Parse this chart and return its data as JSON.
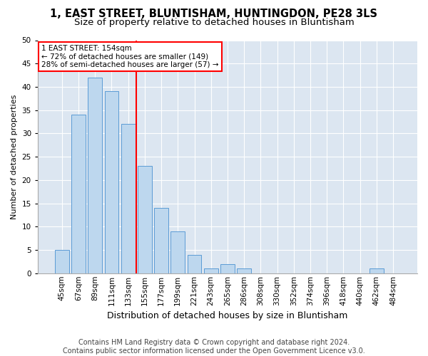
{
  "title": "1, EAST STREET, BLUNTISHAM, HUNTINGDON, PE28 3LS",
  "subtitle": "Size of property relative to detached houses in Bluntisham",
  "xlabel": "Distribution of detached houses by size in Bluntisham",
  "ylabel": "Number of detached properties",
  "categories": [
    "45sqm",
    "67sqm",
    "89sqm",
    "111sqm",
    "133sqm",
    "155sqm",
    "177sqm",
    "199sqm",
    "221sqm",
    "243sqm",
    "265sqm",
    "286sqm",
    "308sqm",
    "330sqm",
    "352sqm",
    "374sqm",
    "396sqm",
    "418sqm",
    "440sqm",
    "462sqm",
    "484sqm"
  ],
  "values": [
    5,
    34,
    42,
    39,
    32,
    23,
    14,
    9,
    4,
    1,
    2,
    1,
    0,
    0,
    0,
    0,
    0,
    0,
    0,
    1,
    0
  ],
  "bar_color": "#bdd7ee",
  "bar_edge_color": "#5b9bd5",
  "marker_line_index": 5,
  "annotation_line1": "1 EAST STREET: 154sqm",
  "annotation_line2": "← 72% of detached houses are smaller (149)",
  "annotation_line3": "28% of semi-detached houses are larger (57) →",
  "annotation_box_facecolor": "white",
  "annotation_box_edgecolor": "red",
  "marker_line_color": "red",
  "ylim": [
    0,
    50
  ],
  "yticks": [
    0,
    5,
    10,
    15,
    20,
    25,
    30,
    35,
    40,
    45,
    50
  ],
  "bg_color": "#dce6f1",
  "footer_line1": "Contains HM Land Registry data © Crown copyright and database right 2024.",
  "footer_line2": "Contains public sector information licensed under the Open Government Licence v3.0.",
  "title_fontsize": 10.5,
  "subtitle_fontsize": 9.5,
  "xlabel_fontsize": 9,
  "ylabel_fontsize": 8,
  "tick_fontsize": 7.5,
  "annot_fontsize": 7.5,
  "footer_fontsize": 7
}
